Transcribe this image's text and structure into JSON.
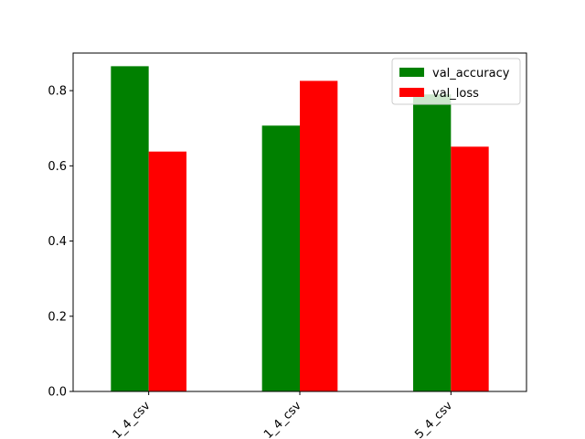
{
  "chart_data": {
    "type": "bar",
    "categories": [
      "1_4_csv",
      "1_4_csv",
      "5_4_csv"
    ],
    "series": [
      {
        "name": "val_accuracy",
        "values": [
          0.865,
          0.707,
          0.79
        ],
        "color": "#008000"
      },
      {
        "name": "val_loss",
        "values": [
          0.638,
          0.826,
          0.651
        ],
        "color": "#ff0000"
      }
    ],
    "yticks": [
      "0.0",
      "0.2",
      "0.4",
      "0.6",
      "0.8"
    ],
    "ylim": [
      0,
      0.9
    ],
    "legend": "top-right",
    "grid": false
  }
}
